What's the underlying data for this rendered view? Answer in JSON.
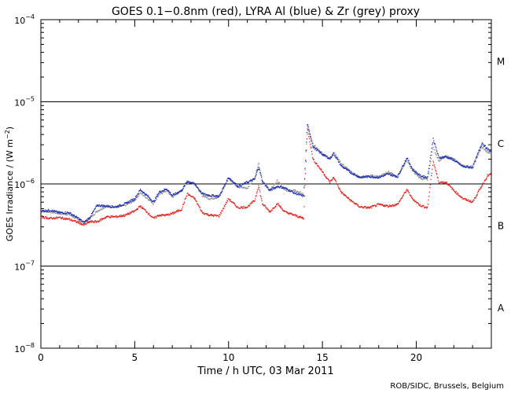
{
  "chart_data": {
    "type": "scatter",
    "title": "GOES 0.1−0.8nm (red), LYRA Al (blue) & Zr (grey) proxy",
    "xlabel": "Time / h UTC, 03 Mar 2011",
    "ylabel_prefix": "GOES Irradiance / (W m",
    "ylabel_exp": "−2",
    "ylabel_suffix": ")",
    "credit": "ROB/SIDC, Brussels, Belgium",
    "x_range": [
      0,
      24
    ],
    "y_range_log10": [
      -8,
      -4
    ],
    "x_ticks": [
      0,
      5,
      10,
      15,
      20
    ],
    "y_ticks": [
      {
        "base": "10",
        "exp": "−4",
        "value": -4
      },
      {
        "base": "10",
        "exp": "−5",
        "value": -5
      },
      {
        "base": "10",
        "exp": "−6",
        "value": -6
      },
      {
        "base": "10",
        "exp": "−7",
        "value": -7
      },
      {
        "base": "10",
        "exp": "−8",
        "value": -8
      }
    ],
    "class_lines_log10": [
      -5,
      -6,
      -7
    ],
    "flare_classes": [
      {
        "label": "M",
        "log10_center": -4.5
      },
      {
        "label": "C",
        "log10_center": -5.5
      },
      {
        "label": "B",
        "log10_center": -6.5
      },
      {
        "label": "A",
        "log10_center": -7.5
      }
    ],
    "series": [
      {
        "name": "LYRA Zr proxy",
        "color": "#9a9a9a",
        "points": [
          [
            0,
            -6.33
          ],
          [
            0.5,
            -6.34
          ],
          [
            1,
            -6.36
          ],
          [
            1.5,
            -6.37
          ],
          [
            2,
            -6.44
          ],
          [
            2.3,
            -6.47
          ],
          [
            2.6,
            -6.42
          ],
          [
            3.0,
            -6.33
          ],
          [
            3.5,
            -6.27
          ],
          [
            4.0,
            -6.28
          ],
          [
            4.5,
            -6.26
          ],
          [
            5.0,
            -6.2
          ],
          [
            5.3,
            -6.11
          ],
          [
            5.7,
            -6.18
          ],
          [
            6.0,
            -6.24
          ],
          [
            6.3,
            -6.13
          ],
          [
            6.7,
            -6.08
          ],
          [
            7.0,
            -6.16
          ],
          [
            7.5,
            -6.08
          ],
          [
            7.8,
            -5.96
          ],
          [
            8.2,
            -6.0
          ],
          [
            8.6,
            -6.14
          ],
          [
            9.0,
            -6.18
          ],
          [
            9.5,
            -6.16
          ],
          [
            10.0,
            -5.93
          ],
          [
            10.5,
            -6.04
          ],
          [
            11.0,
            -6.05
          ],
          [
            11.4,
            -5.92
          ],
          [
            11.6,
            -5.74
          ],
          [
            11.8,
            -5.96
          ],
          [
            12.2,
            -6.08
          ],
          [
            12.6,
            -5.96
          ],
          [
            13.0,
            -6.08
          ],
          [
            13.5,
            -6.07
          ],
          [
            14.0,
            -6.13
          ],
          [
            14.2,
            -5.3
          ],
          [
            14.5,
            -5.52
          ],
          [
            15.0,
            -5.63
          ],
          [
            15.4,
            -5.7
          ],
          [
            15.6,
            -5.61
          ],
          [
            16.0,
            -5.75
          ],
          [
            16.5,
            -5.85
          ],
          [
            17.0,
            -5.92
          ],
          [
            17.5,
            -5.9
          ],
          [
            18.0,
            -5.91
          ],
          [
            18.5,
            -5.85
          ],
          [
            19.0,
            -5.92
          ],
          [
            19.5,
            -5.71
          ],
          [
            19.8,
            -5.84
          ],
          [
            20.2,
            -5.93
          ],
          [
            20.6,
            -5.95
          ],
          [
            20.9,
            -5.55
          ],
          [
            21.2,
            -5.72
          ],
          [
            21.6,
            -5.66
          ],
          [
            22.0,
            -5.7
          ],
          [
            22.5,
            -5.78
          ],
          [
            23.0,
            -5.79
          ],
          [
            23.5,
            -5.55
          ],
          [
            23.8,
            -5.62
          ],
          [
            24,
            -5.62
          ]
        ]
      },
      {
        "name": "LYRA Al proxy",
        "color": "#1c2db0",
        "points": [
          [
            0,
            -6.33
          ],
          [
            0.5,
            -6.32
          ],
          [
            1,
            -6.35
          ],
          [
            1.5,
            -6.35
          ],
          [
            2,
            -6.42
          ],
          [
            2.3,
            -6.47
          ],
          [
            2.6,
            -6.41
          ],
          [
            3.0,
            -6.26
          ],
          [
            3.5,
            -6.27
          ],
          [
            4.0,
            -6.28
          ],
          [
            4.5,
            -6.24
          ],
          [
            5.0,
            -6.18
          ],
          [
            5.3,
            -6.07
          ],
          [
            5.7,
            -6.15
          ],
          [
            6.0,
            -6.22
          ],
          [
            6.3,
            -6.1
          ],
          [
            6.7,
            -6.06
          ],
          [
            7.0,
            -6.14
          ],
          [
            7.5,
            -6.08
          ],
          [
            7.8,
            -5.97
          ],
          [
            8.2,
            -6.0
          ],
          [
            8.6,
            -6.12
          ],
          [
            9.0,
            -6.14
          ],
          [
            9.5,
            -6.15
          ],
          [
            10.0,
            -5.92
          ],
          [
            10.5,
            -6.03
          ],
          [
            11.0,
            -5.98
          ],
          [
            11.4,
            -5.94
          ],
          [
            11.6,
            -5.79
          ],
          [
            11.8,
            -5.97
          ],
          [
            12.2,
            -6.08
          ],
          [
            12.6,
            -6.03
          ],
          [
            13.0,
            -6.05
          ],
          [
            13.5,
            -6.11
          ],
          [
            14.0,
            -6.15
          ],
          [
            14.2,
            -5.27
          ],
          [
            14.5,
            -5.55
          ],
          [
            15.0,
            -5.64
          ],
          [
            15.4,
            -5.69
          ],
          [
            15.6,
            -5.63
          ],
          [
            16.0,
            -5.78
          ],
          [
            16.5,
            -5.86
          ],
          [
            17.0,
            -5.92
          ],
          [
            17.5,
            -5.91
          ],
          [
            18.0,
            -5.92
          ],
          [
            18.5,
            -5.88
          ],
          [
            19.0,
            -5.91
          ],
          [
            19.5,
            -5.68
          ],
          [
            19.8,
            -5.82
          ],
          [
            20.2,
            -5.9
          ],
          [
            20.6,
            -5.92
          ],
          [
            20.9,
            -5.45
          ],
          [
            21.2,
            -5.68
          ],
          [
            21.6,
            -5.67
          ],
          [
            22.0,
            -5.71
          ],
          [
            22.5,
            -5.79
          ],
          [
            23.0,
            -5.8
          ],
          [
            23.5,
            -5.5
          ],
          [
            23.8,
            -5.58
          ],
          [
            24,
            -5.6
          ]
        ]
      },
      {
        "name": "GOES 0.1-0.8nm",
        "color": "#e0201a",
        "points": [
          [
            0,
            -6.4
          ],
          [
            0.5,
            -6.42
          ],
          [
            1,
            -6.41
          ],
          [
            1.5,
            -6.43
          ],
          [
            2,
            -6.47
          ],
          [
            2.3,
            -6.5
          ],
          [
            2.6,
            -6.46
          ],
          [
            3.0,
            -6.46
          ],
          [
            3.5,
            -6.4
          ],
          [
            4.0,
            -6.4
          ],
          [
            4.5,
            -6.38
          ],
          [
            5.0,
            -6.33
          ],
          [
            5.3,
            -6.27
          ],
          [
            5.7,
            -6.35
          ],
          [
            6.0,
            -6.42
          ],
          [
            6.3,
            -6.38
          ],
          [
            6.7,
            -6.38
          ],
          [
            7.0,
            -6.36
          ],
          [
            7.5,
            -6.31
          ],
          [
            7.8,
            -6.12
          ],
          [
            8.2,
            -6.18
          ],
          [
            8.6,
            -6.35
          ],
          [
            9.0,
            -6.38
          ],
          [
            9.5,
            -6.39
          ],
          [
            10.0,
            -6.18
          ],
          [
            10.5,
            -6.29
          ],
          [
            11.0,
            -6.28
          ],
          [
            11.4,
            -6.2
          ],
          [
            11.6,
            -6.02
          ],
          [
            11.8,
            -6.24
          ],
          [
            12.2,
            -6.34
          ],
          [
            12.6,
            -6.24
          ],
          [
            13.0,
            -6.34
          ],
          [
            13.5,
            -6.38
          ],
          [
            14.0,
            -6.42
          ],
          [
            14.2,
            -5.32
          ],
          [
            14.5,
            -5.7
          ],
          [
            15.0,
            -5.85
          ],
          [
            15.4,
            -5.98
          ],
          [
            15.6,
            -5.92
          ],
          [
            16.0,
            -6.1
          ],
          [
            16.5,
            -6.2
          ],
          [
            17.0,
            -6.28
          ],
          [
            17.5,
            -6.29
          ],
          [
            18.0,
            -6.25
          ],
          [
            18.5,
            -6.27
          ],
          [
            19.0,
            -6.25
          ],
          [
            19.5,
            -6.07
          ],
          [
            19.8,
            -6.18
          ],
          [
            20.2,
            -6.26
          ],
          [
            20.6,
            -6.29
          ],
          [
            20.9,
            -5.72
          ],
          [
            21.2,
            -5.98
          ],
          [
            21.6,
            -5.98
          ],
          [
            22.0,
            -6.08
          ],
          [
            22.5,
            -6.18
          ],
          [
            23.0,
            -6.22
          ],
          [
            23.5,
            -6.02
          ],
          [
            23.8,
            -5.9
          ],
          [
            24,
            -5.88
          ]
        ]
      }
    ]
  }
}
